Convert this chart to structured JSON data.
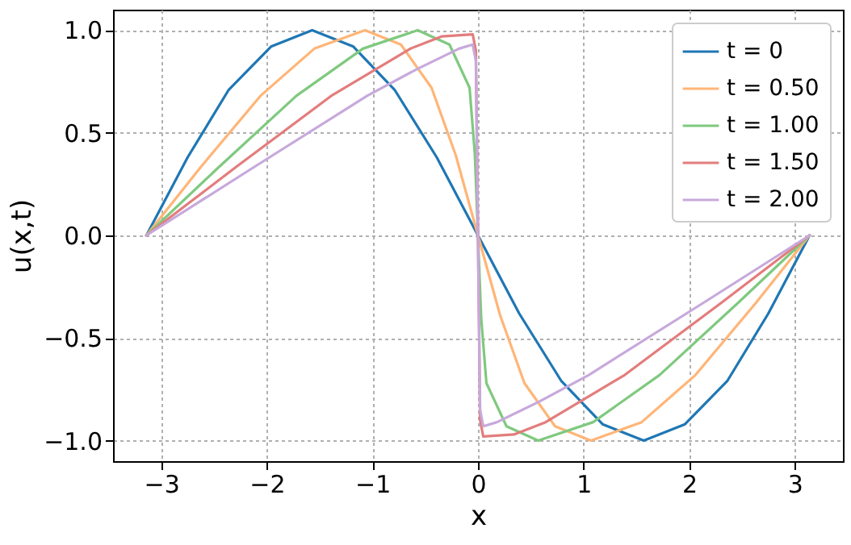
{
  "chart_data": {
    "type": "line",
    "xlabel": "x",
    "ylabel": "u(x,t)",
    "xlim": [
      -3.456,
      3.456
    ],
    "xticks": [
      {
        "value": -3,
        "label": "−3"
      },
      {
        "value": -2,
        "label": "−2"
      },
      {
        "value": -1,
        "label": "−1"
      },
      {
        "value": 0,
        "label": "0"
      },
      {
        "value": 1,
        "label": "1"
      },
      {
        "value": 2,
        "label": "2"
      },
      {
        "value": 3,
        "label": "3"
      }
    ],
    "ylim": [
      -1.1,
      1.1
    ],
    "yticks": [
      {
        "value": -1,
        "label": "−1.0"
      },
      {
        "value": -0.5,
        "label": "−0.5"
      },
      {
        "value": 0,
        "label": "0.0"
      },
      {
        "value": 0.5,
        "label": "0.5"
      },
      {
        "value": 1,
        "label": "1.0"
      }
    ],
    "grid": true,
    "legend": "top right",
    "series": [
      {
        "name": "t = 0",
        "color": "#1f77b4",
        "x": [
          -3.14,
          -2.75,
          -2.36,
          -1.96,
          -1.57,
          -1.18,
          -0.79,
          -0.39,
          0,
          0.39,
          0.79,
          1.18,
          1.57,
          1.96,
          2.36,
          2.75,
          3.14
        ],
        "values": [
          0,
          0.38,
          0.71,
          0.92,
          1,
          0.92,
          0.71,
          0.38,
          0,
          -0.38,
          -0.71,
          -0.92,
          -1,
          -0.92,
          -0.71,
          -0.38,
          0
        ]
      },
      {
        "name": "t = 0.50",
        "color": "#ffb577",
        "x": [
          -3.14,
          -2.63,
          -2.06,
          -1.55,
          -1.07,
          -0.73,
          -0.44,
          -0.21,
          0,
          0.21,
          0.44,
          0.73,
          1.07,
          1.55,
          2.06,
          2.63,
          3.14
        ],
        "values": [
          0,
          0.33,
          0.68,
          0.91,
          1,
          0.93,
          0.72,
          0.39,
          0,
          -0.39,
          -0.72,
          -0.93,
          -1,
          -0.91,
          -0.68,
          -0.33,
          0
        ]
      },
      {
        "name": "t = 1.00",
        "color": "#7fc97f",
        "x": [
          -3.14,
          -2.46,
          -1.72,
          -1.09,
          -0.57,
          -0.27,
          -0.08,
          -0.03,
          0,
          0.03,
          0.08,
          0.27,
          0.57,
          1.09,
          1.72,
          2.46,
          3.14
        ],
        "values": [
          0,
          0.33,
          0.68,
          0.91,
          1,
          0.93,
          0.72,
          0.4,
          0,
          -0.4,
          -0.72,
          -0.93,
          -1,
          -0.91,
          -0.68,
          -0.33,
          0
        ]
      },
      {
        "name": "t = 1.50",
        "color": "#e37d7d",
        "x": [
          -3.14,
          -2.3,
          -1.39,
          -0.64,
          -0.34,
          -0.05,
          -0.02,
          0,
          0.02,
          0.05,
          0.34,
          0.64,
          1.39,
          2.3,
          3.14
        ],
        "values": [
          0,
          0.33,
          0.68,
          0.91,
          0.97,
          0.98,
          0.9,
          0,
          -0.9,
          -0.98,
          -0.97,
          -0.91,
          -0.68,
          -0.33,
          0
        ]
      },
      {
        "name": "t = 2.00",
        "color": "#c7a9dc",
        "x": [
          -3.14,
          -2.13,
          -1.05,
          -0.58,
          -0.18,
          -0.05,
          -0.02,
          0,
          0.02,
          0.05,
          0.18,
          0.58,
          1.05,
          2.13,
          3.14
        ],
        "values": [
          0,
          0.33,
          0.68,
          0.81,
          0.91,
          0.93,
          0.85,
          0,
          -0.85,
          -0.93,
          -0.91,
          -0.81,
          -0.68,
          -0.33,
          0
        ]
      }
    ]
  }
}
